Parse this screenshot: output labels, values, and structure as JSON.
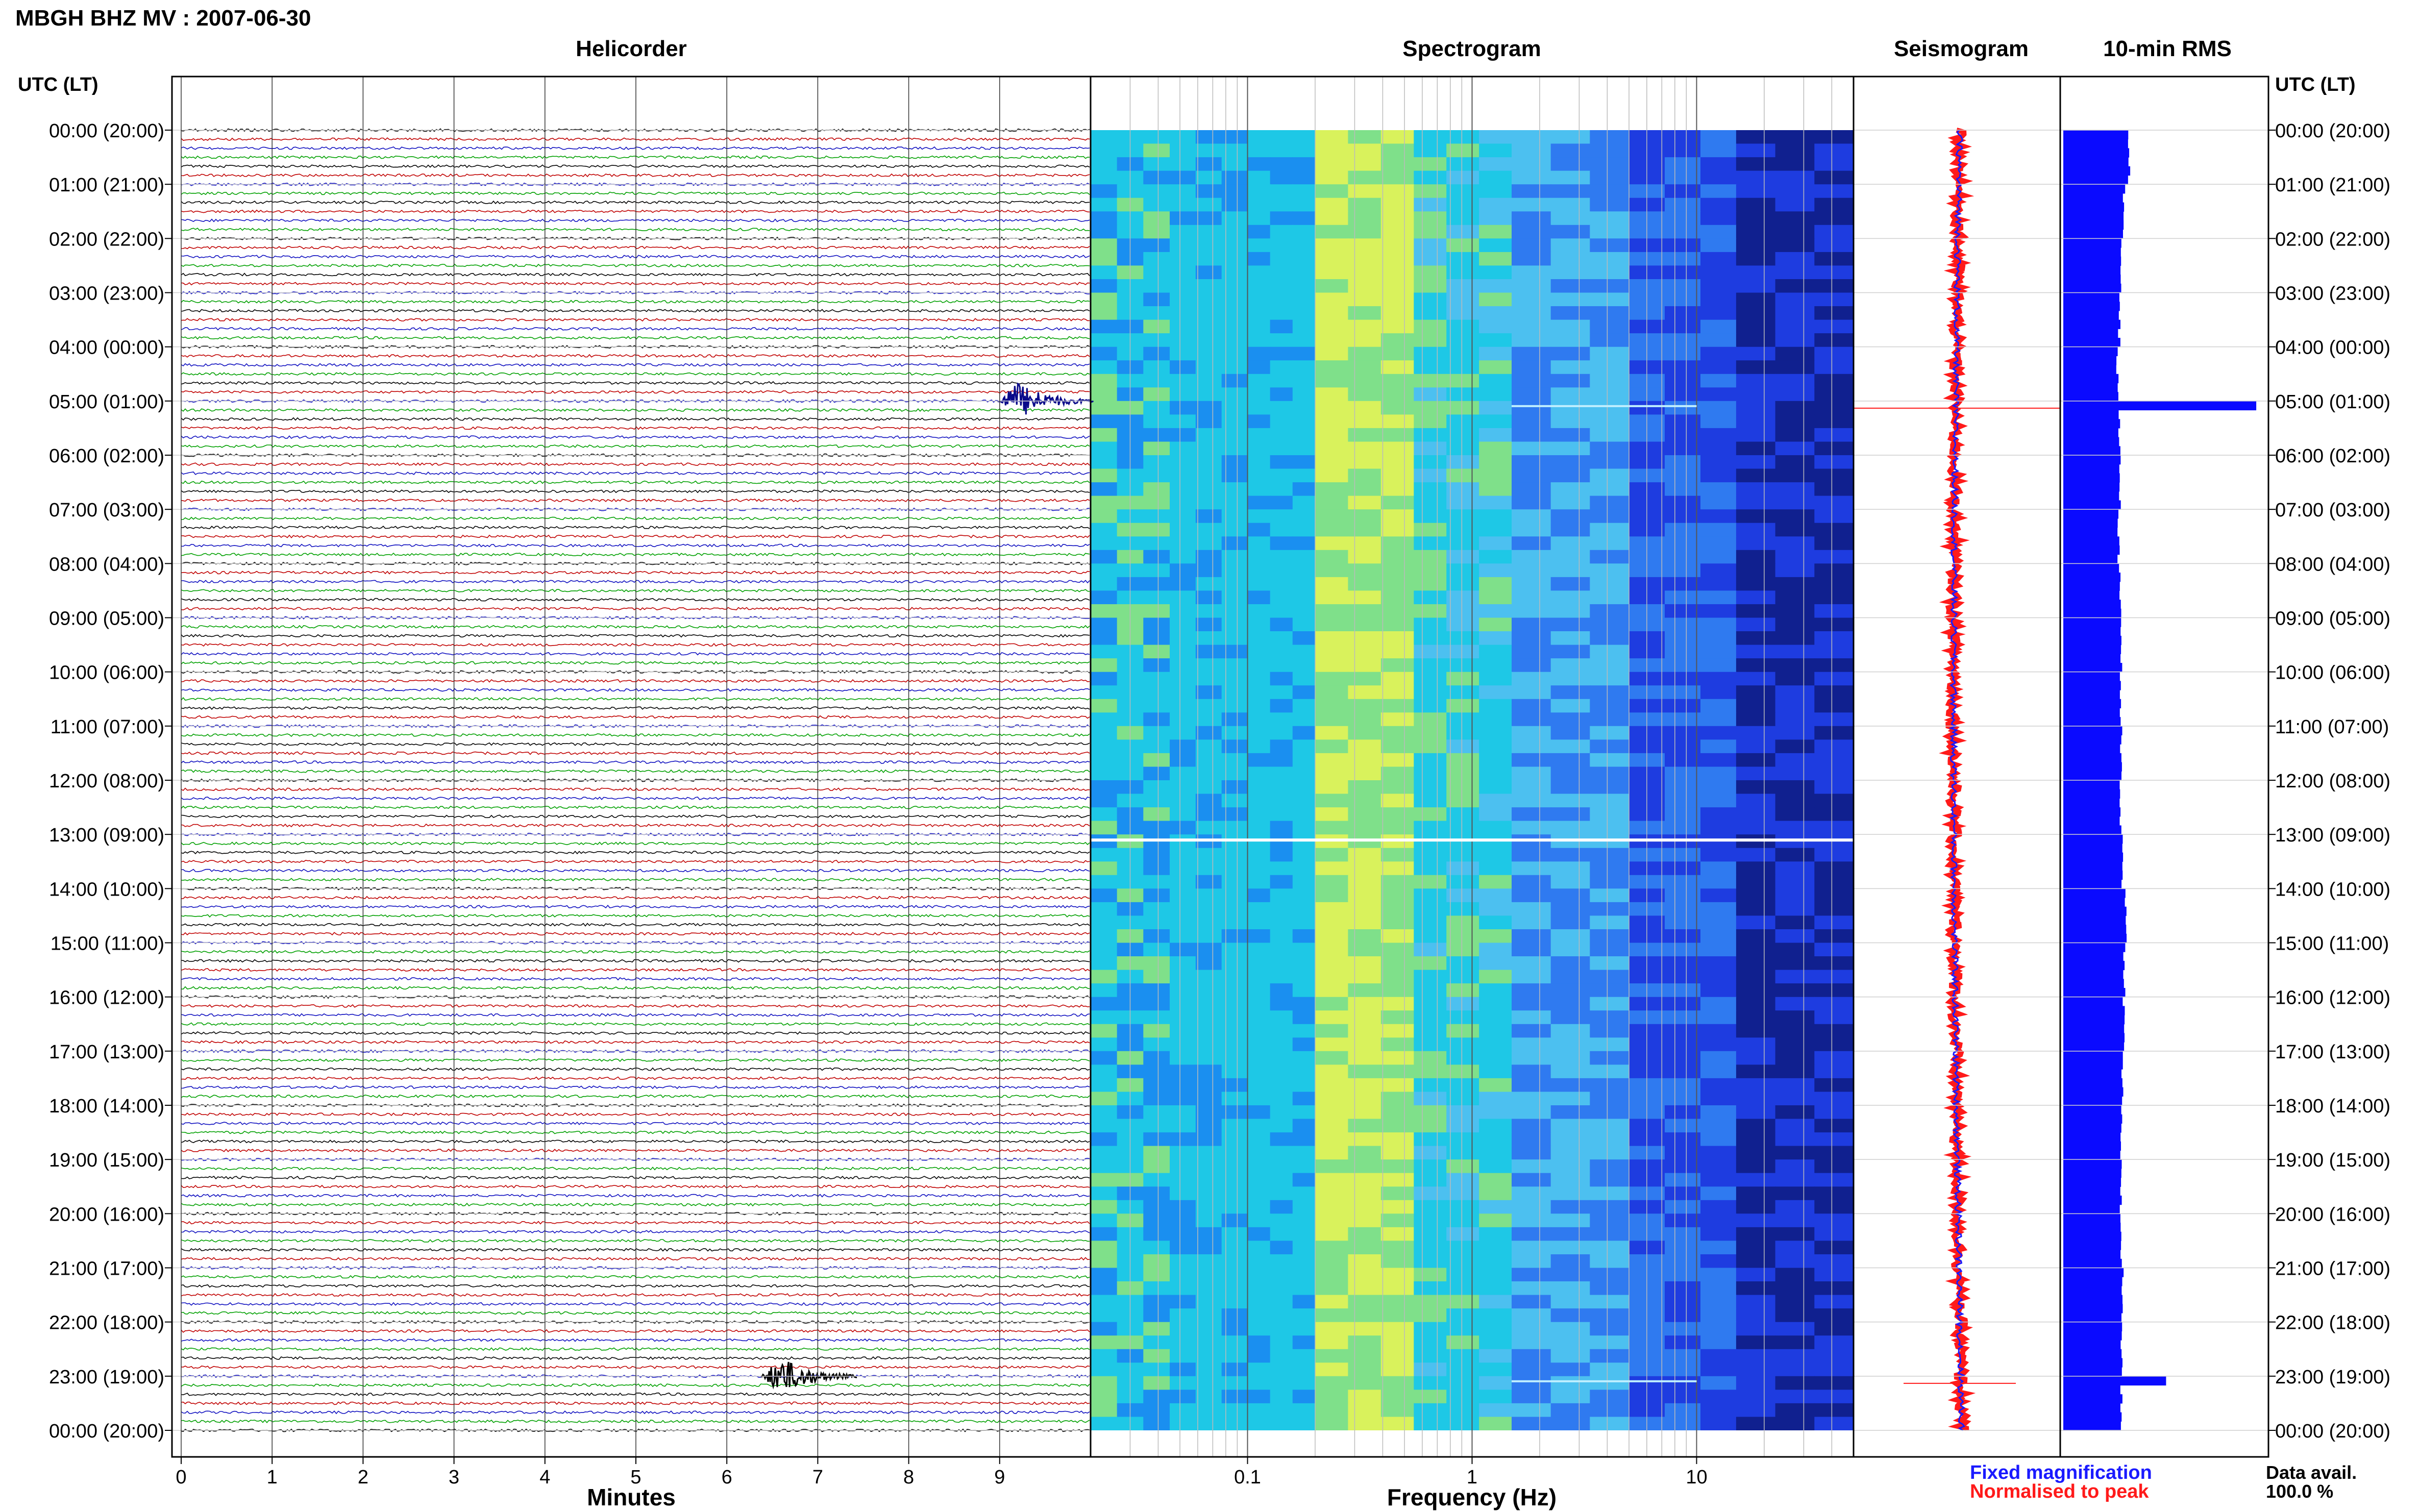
{
  "header": {
    "station_title": "MBGH BHZ MV : 2007-06-30"
  },
  "panels": {
    "helicorder_title": "Helicorder",
    "spectrogram_title": "Spectrogram",
    "seismogram_title": "Seismogram",
    "rms_title": "10-min RMS"
  },
  "time_axis": {
    "left_header": "UTC (LT)",
    "right_header": "UTC (LT)",
    "labels": [
      "00:00 (20:00)",
      "01:00 (21:00)",
      "02:00 (22:00)",
      "03:00 (23:00)",
      "04:00 (00:00)",
      "05:00 (01:00)",
      "06:00 (02:00)",
      "07:00 (03:00)",
      "08:00 (04:00)",
      "09:00 (05:00)",
      "10:00 (06:00)",
      "11:00 (07:00)",
      "12:00 (08:00)",
      "13:00 (09:00)",
      "14:00 (10:00)",
      "15:00 (11:00)",
      "16:00 (12:00)",
      "17:00 (13:00)",
      "18:00 (14:00)",
      "19:00 (15:00)",
      "20:00 (16:00)",
      "21:00 (17:00)",
      "22:00 (18:00)",
      "23:00 (19:00)",
      "00:00 (20:00)"
    ]
  },
  "legend": {
    "fixed_label": "Fixed magnification",
    "normalised_label": "Normalised to peak",
    "fixed_color": "#1a1aff",
    "normalised_color": "#ff1a1a",
    "data_avail_label": "Data avail.",
    "data_avail_value": "100.0 %"
  },
  "chart_data": [
    {
      "type": "line",
      "panel": "helicorder",
      "title": "Helicorder",
      "xlabel": "Minutes",
      "x_ticks": [
        "0",
        "1",
        "2",
        "3",
        "4",
        "5",
        "6",
        "7",
        "8",
        "9"
      ],
      "xlim": [
        0,
        10
      ],
      "rows_per_hour": 6,
      "hours": 24,
      "trace_colors": [
        "#000000",
        "#c00000",
        "#1010c0",
        "#00a000"
      ],
      "events": [
        {
          "time_utc": "05:00",
          "minute": 9.2,
          "amplitude": "large"
        },
        {
          "time_utc": "23:00",
          "minute": 6.6,
          "amplitude": "large"
        }
      ]
    },
    {
      "type": "heatmap",
      "panel": "spectrogram",
      "title": "Spectrogram",
      "xlabel": "Frequency (Hz)",
      "x_scale": "log",
      "xlim": [
        0.02,
        50
      ],
      "x_ticks": [
        "0.1",
        "1",
        "10"
      ],
      "colormap": [
        "#1a8ff0",
        "#1ec8e6",
        "#7fe08a",
        "#d9f25c",
        "#4cc0f0",
        "#2f7af0",
        "#1e3ce0",
        "#10208f"
      ],
      "notable_rows_utc": [
        "05:00",
        "13:00",
        "23:00"
      ]
    },
    {
      "type": "line",
      "panel": "seismogram",
      "title": "Seismogram",
      "series": [
        {
          "name": "Fixed magnification",
          "color": "#1a1aff"
        },
        {
          "name": "Normalised to peak",
          "color": "#ff1a1a"
        }
      ]
    },
    {
      "type": "bar",
      "panel": "rms",
      "title": "10-min RMS",
      "orientation": "horizontal",
      "bar_color": "#0a0aff",
      "hourly_rms": [
        1.0,
        0.92,
        0.88,
        0.85,
        0.82,
        2.95,
        0.86,
        0.84,
        0.86,
        0.88,
        0.86,
        0.88,
        0.87,
        0.9,
        0.95,
        0.93,
        0.92,
        0.9,
        0.88,
        0.87,
        0.88,
        0.9,
        0.88,
        1.55
      ],
      "xlim": [
        0,
        3.0
      ]
    }
  ]
}
